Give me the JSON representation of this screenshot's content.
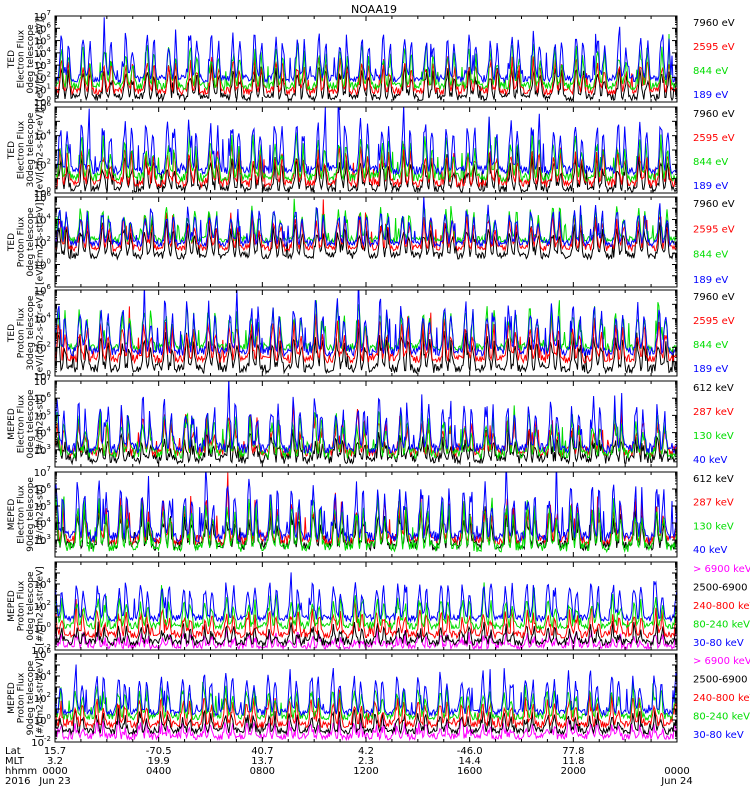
{
  "title": "NOAA19",
  "colors": {
    "black": "#000000",
    "red": "#ff0000",
    "green": "#00dd00",
    "blue": "#0000ff",
    "magenta": "#ff00ff"
  },
  "chart_data": [
    {
      "type": "line",
      "panel": "ted-electron-0deg",
      "ylabel": [
        "TED",
        "Electron Flux",
        "0deg telescope",
        "[eV/[cm2-s-str-eV]]"
      ],
      "yscale": "log",
      "ylim": [
        1,
        10000000
      ],
      "y_decades": [
        0,
        7
      ],
      "yticks": [
        {
          "base": "10",
          "exp": "0"
        },
        {
          "base": "10",
          "exp": "1"
        },
        {
          "base": "10",
          "exp": "2"
        },
        {
          "base": "10",
          "exp": "3"
        },
        {
          "base": "10",
          "exp": "4"
        },
        {
          "base": "10",
          "exp": "5"
        },
        {
          "base": "10",
          "exp": "6"
        },
        {
          "base": "10",
          "exp": "7"
        }
      ],
      "series": [
        {
          "name": "7960 eV",
          "color": "#000000",
          "base": 0.4,
          "amp": 2.0
        },
        {
          "name": "2595 eV",
          "color": "#ff0000",
          "base": 0.9,
          "amp": 2.2
        },
        {
          "name": "844 eV",
          "color": "#00dd00",
          "base": 1.3,
          "amp": 2.7
        },
        {
          "name": "189 eV",
          "color": "#0000ff",
          "base": 1.9,
          "amp": 3.2
        }
      ]
    },
    {
      "type": "line",
      "panel": "ted-electron-30deg",
      "ylabel": [
        "TED",
        "Electron Flux",
        "30deg telescope",
        "[eV/[cm2-s-str-eV]]"
      ],
      "yscale": "log",
      "ylim": [
        1,
        1000000
      ],
      "y_decades": [
        0,
        6
      ],
      "yticks": [
        {
          "base": "10",
          "exp": "0"
        },
        {
          "base": "10",
          "exp": "2"
        },
        {
          "base": "10",
          "exp": "4"
        },
        {
          "base": "10",
          "exp": "6"
        }
      ],
      "series": [
        {
          "name": "7960 eV",
          "color": "#000000",
          "base": 0.3,
          "amp": 1.8
        },
        {
          "name": "2595 eV",
          "color": "#ff0000",
          "base": 0.7,
          "amp": 2.0
        },
        {
          "name": "844 eV",
          "color": "#00dd00",
          "base": 1.1,
          "amp": 2.4
        },
        {
          "name": "189 eV",
          "color": "#0000ff",
          "base": 1.6,
          "amp": 3.1
        }
      ]
    },
    {
      "type": "line",
      "panel": "ted-proton-0deg",
      "ylabel": [
        "TED",
        "Proton Flux",
        "0deg telescope",
        "[eV/[cm2-s-str-eV]]"
      ],
      "yscale": "log",
      "ylim": [
        0.01,
        1000000
      ],
      "y_decades": [
        -2,
        6
      ],
      "yticks": [
        {
          "base": "10",
          "exp": "0"
        },
        {
          "base": "10",
          "exp": "2"
        },
        {
          "base": "10",
          "exp": "4"
        },
        {
          "base": "10",
          "exp": "6"
        }
      ],
      "series": [
        {
          "name": "7960 eV",
          "color": "#000000",
          "base": 0.8,
          "amp": 2.3
        },
        {
          "name": "2595 eV",
          "color": "#ff0000",
          "base": 1.5,
          "amp": 2.4
        },
        {
          "name": "844 eV",
          "color": "#00dd00",
          "base": 2.2,
          "amp": 2.5
        },
        {
          "name": "189 eV",
          "color": "#0000ff",
          "base": 1.9,
          "amp": 2.8
        }
      ]
    },
    {
      "type": "line",
      "panel": "ted-proton-30deg",
      "ylabel": [
        "TED",
        "Proton Flux",
        "30deg telescope",
        "[eV/[cm2-s-str-eV]]"
      ],
      "yscale": "log",
      "ylim": [
        1,
        1000000
      ],
      "y_decades": [
        0,
        6
      ],
      "yticks": [
        {
          "base": "10",
          "exp": "0"
        },
        {
          "base": "10",
          "exp": "2"
        },
        {
          "base": "10",
          "exp": "4"
        },
        {
          "base": "10",
          "exp": "6"
        }
      ],
      "series": [
        {
          "name": "7960 eV",
          "color": "#000000",
          "base": 0.5,
          "amp": 2.0
        },
        {
          "name": "2595 eV",
          "color": "#ff0000",
          "base": 1.2,
          "amp": 2.2
        },
        {
          "name": "844 eV",
          "color": "#00dd00",
          "base": 2.0,
          "amp": 2.4
        },
        {
          "name": "189 eV",
          "color": "#0000ff",
          "base": 1.7,
          "amp": 3.0
        }
      ]
    },
    {
      "type": "line",
      "panel": "meped-electron-0deg",
      "ylabel": [
        "MEPED",
        "Electron Flux",
        "0deg telescope",
        "[#/cm2-s-str]"
      ],
      "yscale": "log",
      "ylim": [
        100,
        10000000
      ],
      "y_decades": [
        2,
        7
      ],
      "yticks": [
        {
          "base": "10",
          "exp": "3"
        },
        {
          "base": "10",
          "exp": "4"
        },
        {
          "base": "10",
          "exp": "5"
        },
        {
          "base": "10",
          "exp": "6"
        },
        {
          "base": "10",
          "exp": "7"
        }
      ],
      "series": [
        {
          "name": "612 keV",
          "color": "#000000",
          "base": 2.5,
          "amp": 1.0
        },
        {
          "name": "287 keV",
          "color": "#ff0000",
          "base": 2.9,
          "amp": 1.6
        },
        {
          "name": "130 keV",
          "color": "#00dd00",
          "base": 2.8,
          "amp": 1.9
        },
        {
          "name": "40 keV",
          "color": "#0000ff",
          "base": 3.1,
          "amp": 2.4
        }
      ]
    },
    {
      "type": "line",
      "panel": "meped-electron-90deg",
      "ylabel": [
        "MEPED",
        "Electron Flux",
        "90deg telescope",
        "[#/cm2-s-str]"
      ],
      "yscale": "log",
      "ylim": [
        100,
        10000000
      ],
      "y_decades": [
        2,
        7
      ],
      "yticks": [
        {
          "base": "10",
          "exp": "3"
        },
        {
          "base": "10",
          "exp": "4"
        },
        {
          "base": "10",
          "exp": "5"
        },
        {
          "base": "10",
          "exp": "6"
        },
        {
          "base": "10",
          "exp": "7"
        }
      ],
      "series": [
        {
          "name": "612 keV",
          "color": "#000000",
          "base": 2.7,
          "amp": 1.6
        },
        {
          "name": "287 keV",
          "color": "#ff0000",
          "base": 3.0,
          "amp": 2.0
        },
        {
          "name": "130 keV",
          "color": "#00dd00",
          "base": 2.6,
          "amp": 2.3
        },
        {
          "name": "40 keV",
          "color": "#0000ff",
          "base": 3.2,
          "amp": 2.7
        }
      ]
    },
    {
      "type": "line",
      "panel": "meped-proton-0deg",
      "ylabel": [
        "MEPED",
        "Proton Flux",
        "0deg telescope",
        "[#/cm2-s-str-keV]"
      ],
      "yscale": "log",
      "ylim": [
        0.01,
        1000000
      ],
      "y_decades": [
        -2,
        6
      ],
      "yticks": [
        {
          "base": "10",
          "exp": "-2"
        },
        {
          "base": "10",
          "exp": "0"
        },
        {
          "base": "10",
          "exp": "2"
        },
        {
          "base": "10",
          "exp": "4"
        }
      ],
      "series": [
        {
          "name": "> 6900 keV",
          "color": "#ff00ff",
          "base": -1.6,
          "amp": 0.8
        },
        {
          "name": "2500-6900",
          "color": "#000000",
          "base": -1.3,
          "amp": 1.2
        },
        {
          "name": "240-800 keV",
          "color": "#ff0000",
          "base": -0.6,
          "amp": 1.8
        },
        {
          "name": "80-240 keV",
          "color": "#00dd00",
          "base": 0.2,
          "amp": 2.2
        },
        {
          "name": "30-80 keV",
          "color": "#0000ff",
          "base": 0.9,
          "amp": 3.0
        }
      ]
    },
    {
      "type": "line",
      "panel": "meped-proton-90deg",
      "ylabel": [
        "MEPED",
        "Proton Flux",
        "90deg telescope",
        "[#/cm2-s-str-keV]"
      ],
      "yscale": "log",
      "ylim": [
        0.01,
        1000000
      ],
      "y_decades": [
        -2,
        6
      ],
      "yticks": [
        {
          "base": "10",
          "exp": "-2"
        },
        {
          "base": "10",
          "exp": "0"
        },
        {
          "base": "10",
          "exp": "2"
        },
        {
          "base": "10",
          "exp": "4"
        },
        {
          "base": "10",
          "exp": "6"
        }
      ],
      "series": [
        {
          "name": "> 6900 keV",
          "color": "#ff00ff",
          "base": -1.5,
          "amp": 1.0
        },
        {
          "name": "2500-6900",
          "color": "#000000",
          "base": -1.0,
          "amp": 1.4
        },
        {
          "name": "240-800 keV",
          "color": "#ff0000",
          "base": -0.4,
          "amp": 2.0
        },
        {
          "name": "80-240 keV",
          "color": "#00dd00",
          "base": 0.3,
          "amp": 2.4
        },
        {
          "name": "30-80 keV",
          "color": "#0000ff",
          "base": 0.7,
          "amp": 3.3
        }
      ]
    }
  ],
  "x_axis": {
    "row_labels": [
      "Lat",
      "MLT",
      "hhmm",
      "2016"
    ],
    "ticks": [
      {
        "lat": "15.7",
        "mlt": "3.2",
        "hhmm": "0000",
        "date": "Jun 23"
      },
      {
        "lat": "-70.5",
        "mlt": "19.9",
        "hhmm": "0400",
        "date": ""
      },
      {
        "lat": "40.7",
        "mlt": "13.7",
        "hhmm": "0800",
        "date": ""
      },
      {
        "lat": "4.2",
        "mlt": "2.3",
        "hhmm": "1200",
        "date": ""
      },
      {
        "lat": "-46.0",
        "mlt": "14.4",
        "hhmm": "1600",
        "date": ""
      },
      {
        "lat": "77.8",
        "mlt": "11.8",
        "hhmm": "2000",
        "date": ""
      },
      {
        "lat": "",
        "mlt": "",
        "hhmm": "0000",
        "date": "Jun 24"
      }
    ],
    "minor_per_major": 4
  }
}
